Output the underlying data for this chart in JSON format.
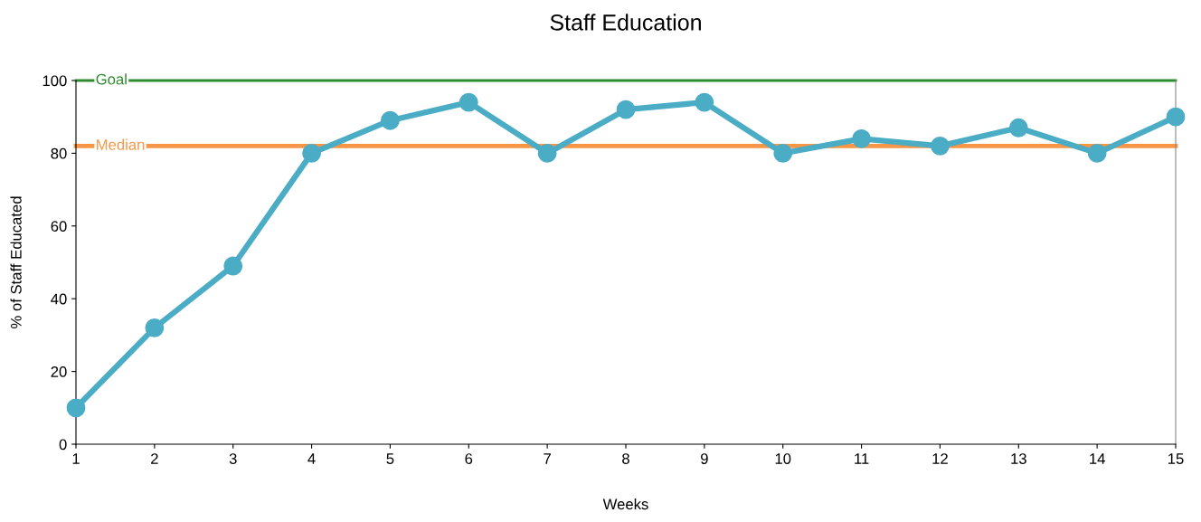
{
  "chart_data": {
    "type": "line",
    "title": "Staff Education",
    "xlabel": "Weeks",
    "ylabel": "% of Staff Educated",
    "x": [
      1,
      2,
      3,
      4,
      5,
      6,
      7,
      8,
      9,
      10,
      11,
      12,
      13,
      14,
      15
    ],
    "series": [
      {
        "color": "#4bacc6",
        "values": [
          10,
          32,
          49,
          80,
          89,
          94,
          80,
          92,
          94,
          80,
          84,
          82,
          87,
          80,
          90
        ]
      }
    ],
    "xlim": [
      1,
      15
    ],
    "xticks": [
      1,
      2,
      3,
      4,
      5,
      6,
      7,
      8,
      9,
      10,
      11,
      12,
      13,
      14,
      15
    ],
    "ylim": [
      0,
      100
    ],
    "yticks": [
      0,
      20,
      40,
      60,
      80,
      100
    ],
    "ref_lines": [
      {
        "axis": "y",
        "value": 100,
        "label": "Goal",
        "color": "#2e8b2e"
      },
      {
        "axis": "y",
        "value": 82,
        "label": "Median",
        "color": "#f79646"
      }
    ],
    "marker": "circle",
    "line_style": "solid",
    "grid": false,
    "legend": false
  }
}
